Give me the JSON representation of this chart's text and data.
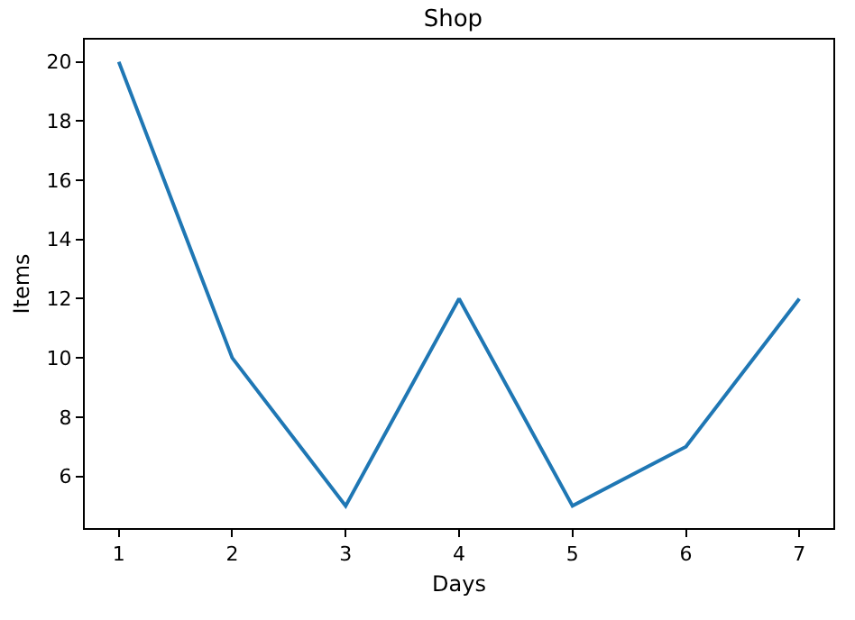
{
  "chart_data": {
    "type": "line",
    "title": "Shop",
    "xlabel": "Days",
    "ylabel": "Items",
    "x": [
      1,
      2,
      3,
      4,
      5,
      6,
      7
    ],
    "series": [
      {
        "color": "#1f77b4",
        "values": [
          20,
          10,
          5,
          12,
          5,
          7,
          12
        ]
      }
    ],
    "xlim": [
      0.7,
      7.3
    ],
    "xticks": [
      1,
      2,
      3,
      4,
      5,
      6,
      7
    ],
    "ylim": [
      4.25,
      20.75
    ],
    "yticks": [
      6,
      8,
      10,
      12,
      14,
      16,
      18,
      20
    ]
  }
}
